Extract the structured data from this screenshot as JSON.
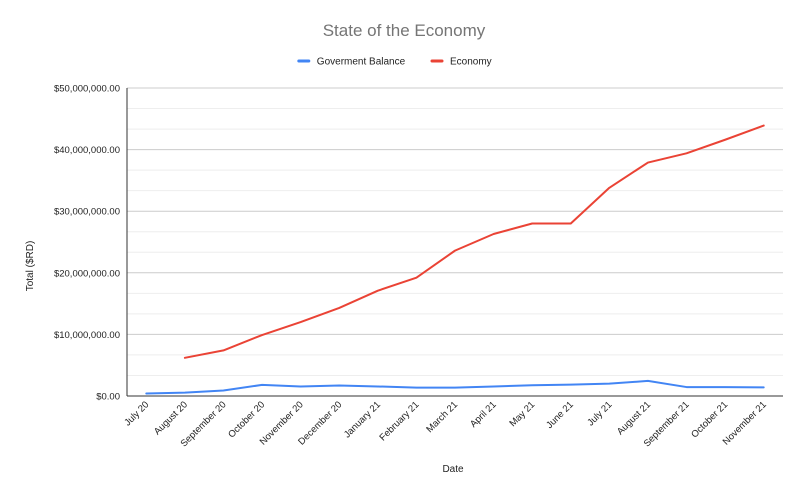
{
  "chart_data": {
    "type": "line",
    "title": "State of the Economy",
    "xlabel": "Date",
    "ylabel": "Total ($RD)",
    "ylim": [
      0,
      50000000
    ],
    "y_ticks": [
      0,
      10000000,
      20000000,
      30000000,
      40000000,
      50000000
    ],
    "y_tick_labels": [
      "$0.00",
      "$10,000,000.00",
      "$20,000,000.00",
      "$30,000,000.00",
      "$40,000,000.00",
      "$50,000,000.00"
    ],
    "categories": [
      "July 20",
      "August 20",
      "September 20",
      "October 20",
      "November 20",
      "December 20",
      "January 21",
      "February 21",
      "March 21",
      "April 21",
      "May 21",
      "June 21",
      "July 21",
      "August 21",
      "September 21",
      "October 21",
      "November 21"
    ],
    "legend_position": "top",
    "grid": true,
    "series": [
      {
        "name": "Goverment Balance",
        "color": "#4285f4",
        "values": [
          400000,
          550000,
          900000,
          1800000,
          1550000,
          1700000,
          1550000,
          1350000,
          1350000,
          1550000,
          1750000,
          1850000,
          2000000,
          2450000,
          1450000,
          1450000,
          1400000
        ]
      },
      {
        "name": "Economy",
        "color": "#ea4335",
        "values": [
          null,
          6200000,
          7400000,
          9900000,
          12000000,
          14300000,
          17100000,
          19200000,
          23600000,
          26300000,
          28000000,
          28000000,
          33800000,
          37900000,
          39400000,
          41600000,
          43900000
        ]
      }
    ]
  }
}
